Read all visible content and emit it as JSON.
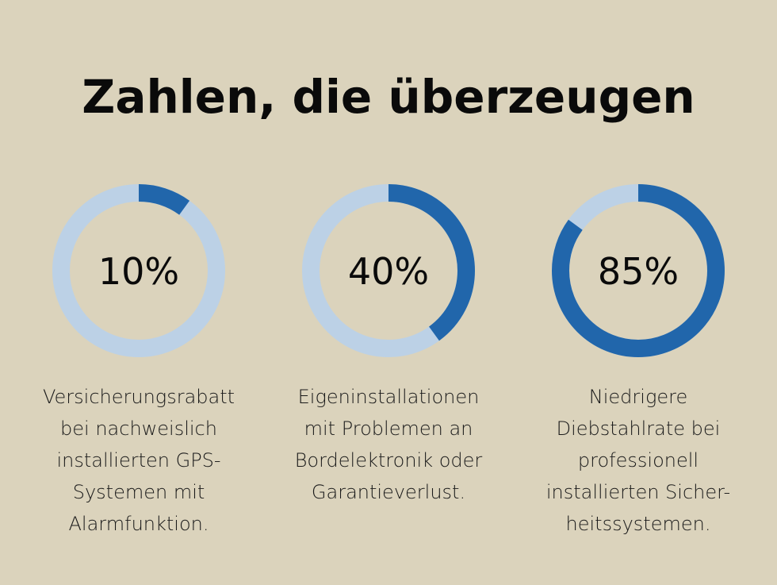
{
  "title": "Zahlen, die überzeugen",
  "colors": {
    "background": "#dbd3bc",
    "track": "#bcd1e6",
    "fill": "#2166ab"
  },
  "chart_data": {
    "type": "pie",
    "charts": [
      {
        "value": 10,
        "label": "10%",
        "description": [
          "Versicherungsrabatt",
          "bei nachweislich",
          "installierten GPS-",
          "Systemen mit",
          "Alarmfunktion."
        ]
      },
      {
        "value": 40,
        "label": "40%",
        "description": [
          "Eigeninstallationen",
          "mit Problemen an",
          "Bordelektronik oder",
          "Garantieverlust."
        ]
      },
      {
        "value": 85,
        "label": "85%",
        "description": [
          "Niedrigere",
          "Diebstahlrate bei",
          "professionell",
          "installierten Sicher-",
          "heitssystemen."
        ]
      }
    ]
  }
}
